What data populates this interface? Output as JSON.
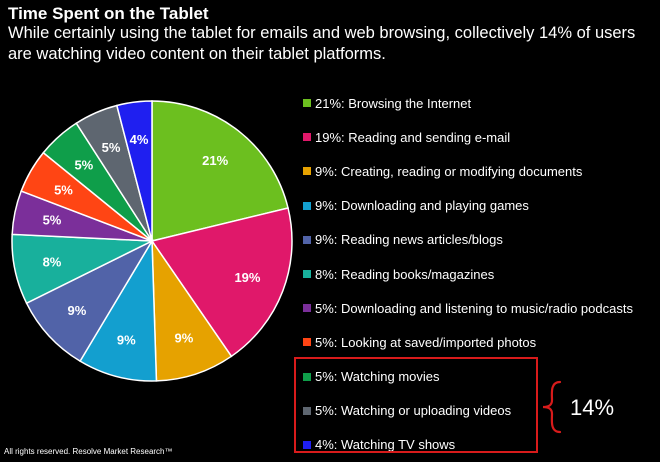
{
  "title": "Time Spent on the Tablet",
  "subtitle": "While certainly using the tablet for emails and web browsing, collectively 14% of users are watching video content on their tablet platforms.",
  "callout": "14%",
  "footer": "All rights reserved. Resolve Market Research™",
  "chart_data": {
    "type": "pie",
    "title": "Time Spent on the Tablet",
    "legend_placement": "right",
    "slices": [
      {
        "label": "21%: Browsing the Internet",
        "value": 21,
        "data_label": "21%",
        "color": "#6CBF1F"
      },
      {
        "label": "19%: Reading and sending e-mail",
        "value": 19,
        "data_label": "19%",
        "color": "#E0186A"
      },
      {
        "label": "9%: Creating, reading or modifying documents",
        "value": 9,
        "data_label": "9%",
        "color": "#E6A200"
      },
      {
        "label": "9%: Downloading and playing games",
        "value": 9,
        "data_label": "9%",
        "color": "#139FCF"
      },
      {
        "label": "9%: Reading news articles/blogs",
        "value": 9,
        "data_label": "9%",
        "color": "#5163A8"
      },
      {
        "label": "8%: Reading books/magazines",
        "value": 8,
        "data_label": "8%",
        "color": "#18B09C"
      },
      {
        "label": "5%: Downloading and listening to music/radio podcasts",
        "value": 5,
        "data_label": "5%",
        "color": "#7B2F9A"
      },
      {
        "label": "5%: Looking at saved/imported photos",
        "value": 5,
        "data_label": "5%",
        "color": "#FF4514"
      },
      {
        "label": "5%: Watching movies",
        "value": 5,
        "data_label": "5%",
        "color": "#0F9E4A"
      },
      {
        "label": "5%: Watching or uploading videos",
        "value": 5,
        "data_label": "5%",
        "color": "#5E6670"
      },
      {
        "label": "4%: Watching TV shows",
        "value": 4,
        "data_label": "4%",
        "color": "#1F1FF0"
      }
    ]
  },
  "highlight": {
    "first_index": 8,
    "last_index": 10,
    "color": "#D81B1B"
  }
}
